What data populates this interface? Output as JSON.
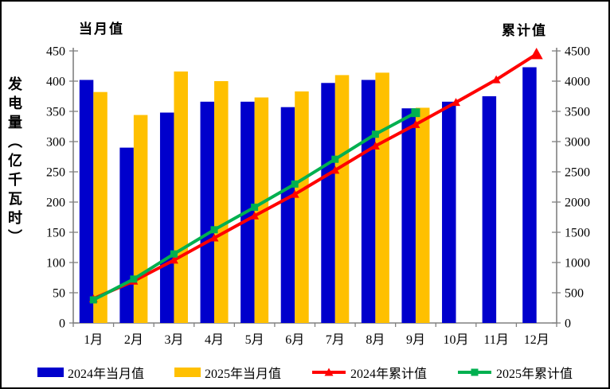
{
  "titles": {
    "monthly_axis": "当月值",
    "cumulative_axis": "累计值",
    "y_axis": "发电量（亿千瓦时）"
  },
  "legend": {
    "items": [
      {
        "label": "2024年当月值",
        "type": "bar",
        "marker": "rect",
        "color": "#0000CC"
      },
      {
        "label": "2025年当月值",
        "type": "bar",
        "marker": "rect",
        "color": "#FFC000"
      },
      {
        "label": "2024年累计值",
        "type": "line",
        "marker": "triangle",
        "color": "#FF0000"
      },
      {
        "label": "2025年累计值",
        "type": "line",
        "marker": "square",
        "color": "#00B050"
      }
    ]
  },
  "chart_data": {
    "type": "bar",
    "subtype": "grouped bars + cumulative lines, dual y-axis",
    "title": "",
    "xlabel": "",
    "ylabel_left": "发电量（亿千瓦时）当月值",
    "ylabel_right": "累计值",
    "grid": false,
    "legend_position": "bottom",
    "categories": [
      "1月",
      "2月",
      "3月",
      "4月",
      "5月",
      "6月",
      "7月",
      "8月",
      "9月",
      "10月",
      "11月",
      "12月"
    ],
    "left_axis": {
      "title": "当月值",
      "min": 0,
      "max": 450,
      "step": 50,
      "tick_labels": [
        "0",
        "50",
        "100",
        "150",
        "200",
        "250",
        "300",
        "350",
        "400",
        "450"
      ]
    },
    "right_axis": {
      "title": "累计值",
      "min": 0,
      "max": 4500,
      "step": 500,
      "tick_labels": [
        "0",
        "500",
        "1000",
        "1500",
        "2000",
        "2500",
        "3000",
        "3500",
        "4000",
        "4500"
      ]
    },
    "series": [
      {
        "name": "2024年当月值",
        "type": "bar",
        "axis": "left",
        "color": "#0000CC",
        "values": [
          402,
          290,
          348,
          366,
          366,
          357,
          397,
          402,
          355,
          366,
          375,
          423
        ]
      },
      {
        "name": "2025年当月值",
        "type": "bar",
        "axis": "left",
        "color": "#FFC000",
        "values": [
          382,
          344,
          416,
          400,
          373,
          383,
          410,
          414,
          356,
          null,
          null,
          null
        ]
      },
      {
        "name": "2024年累计值",
        "type": "line",
        "marker": "triangle",
        "axis": "right",
        "color": "#FF0000",
        "values": [
          402,
          692,
          1040,
          1406,
          1772,
          2129,
          2526,
          2928,
          3283,
          3649,
          4024,
          4447
        ]
      },
      {
        "name": "2025年累计值",
        "type": "line",
        "marker": "square",
        "axis": "right",
        "color": "#00B050",
        "values": [
          382,
          726,
          1142,
          1542,
          1915,
          2298,
          2708,
          3122,
          3478,
          null,
          null,
          null
        ]
      }
    ],
    "axis_color": "#808080",
    "text_color": "#000000"
  }
}
